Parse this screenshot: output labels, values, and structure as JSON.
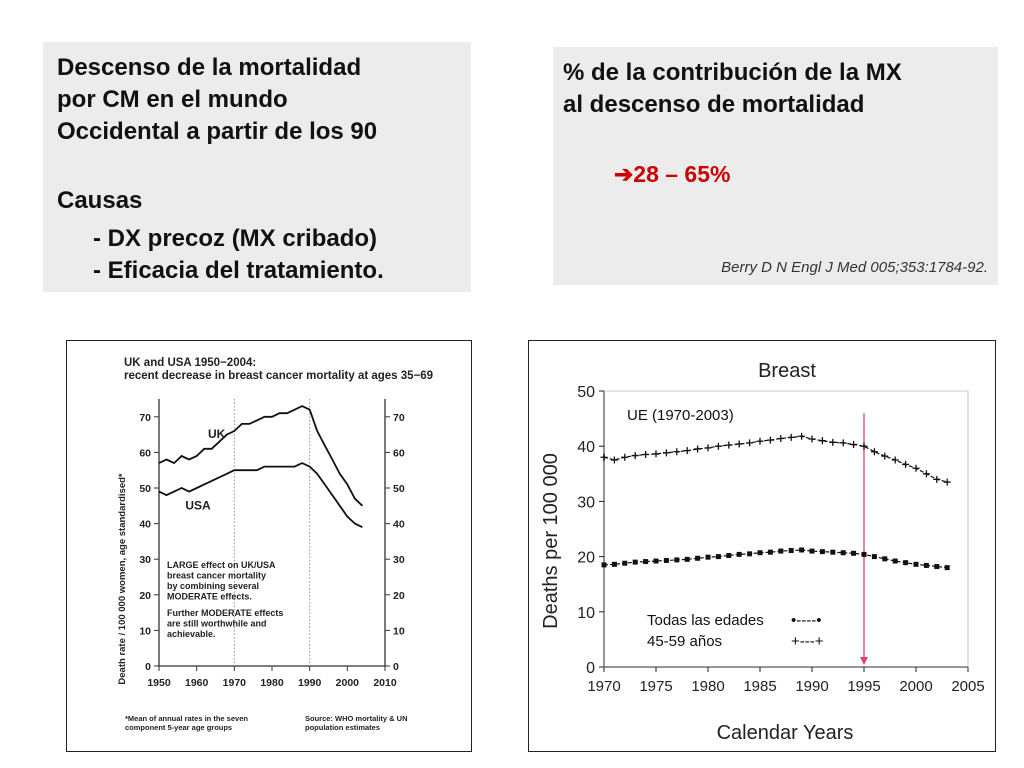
{
  "left_box": {
    "lines": [
      "Descenso de la mortalidad",
      "por CM en el mundo",
      "Occidental  a partir de los 90"
    ],
    "causes_title": "Causas",
    "causes": [
      "- DX precoz (MX cribado)",
      "- Eficacia del tratamiento."
    ]
  },
  "right_box": {
    "lines": [
      "% de la contribución de la MX",
      "al descenso de mortalidad"
    ],
    "arrow_glyph": "➔",
    "range": "28 – 65%",
    "citation": "Berry D N Engl J Med 005;353:1784-92."
  },
  "colors": {
    "box_background": "#ececec",
    "highlight": "#cc0000",
    "marker_line": "#e0407a"
  },
  "chart_data": [
    {
      "type": "line",
      "title": "UK and USA 1950−2004: recent decrease in breast cancer mortality at ages 35−69",
      "ylabel": "Death rate / 100 000 women, age standardised*",
      "xlim": [
        1950,
        2010
      ],
      "ylim": [
        0,
        75
      ],
      "x_ticks": [
        1950,
        1960,
        1970,
        1980,
        1990,
        2000,
        2010
      ],
      "y_ticks": [
        0,
        10,
        20,
        30,
        40,
        50,
        60,
        70
      ],
      "reference_lines_x": [
        1970,
        1990
      ],
      "annotations": [
        "LARGE effect on UK/USA breast cancer mortality by combining several MODERATE effects.",
        "Further MODERATE effects are still worthwhile and achievable."
      ],
      "footnote_left": "*Mean of annual rates in the seven component 5-year age groups",
      "footnote_right": "Source: WHO mortality & UN population estimates",
      "series": [
        {
          "name": "UK",
          "x": [
            1950,
            1952,
            1954,
            1956,
            1958,
            1960,
            1962,
            1964,
            1966,
            1968,
            1970,
            1972,
            1974,
            1976,
            1978,
            1980,
            1982,
            1984,
            1986,
            1988,
            1990,
            1992,
            1994,
            1996,
            1998,
            2000,
            2002,
            2004
          ],
          "y": [
            57,
            58,
            57,
            59,
            58,
            59,
            61,
            61,
            63,
            65,
            66,
            68,
            68,
            69,
            70,
            70,
            71,
            71,
            72,
            73,
            72,
            66,
            62,
            58,
            54,
            51,
            47,
            45
          ]
        },
        {
          "name": "USA",
          "x": [
            1950,
            1952,
            1954,
            1956,
            1958,
            1960,
            1962,
            1964,
            1966,
            1968,
            1970,
            1972,
            1974,
            1976,
            1978,
            1980,
            1982,
            1984,
            1986,
            1988,
            1990,
            1992,
            1994,
            1996,
            1998,
            2000,
            2002,
            2004
          ],
          "y": [
            49,
            48,
            49,
            50,
            49,
            50,
            51,
            52,
            53,
            54,
            55,
            55,
            55,
            55,
            56,
            56,
            56,
            56,
            56,
            57,
            56,
            54,
            51,
            48,
            45,
            42,
            40,
            39
          ]
        }
      ]
    },
    {
      "type": "line",
      "title": "Breast",
      "xlabel": "Calendar Years",
      "ylabel": "Deaths  per 100 000",
      "xlim": [
        1970,
        2005
      ],
      "ylim": [
        0,
        50
      ],
      "x_ticks": [
        1970,
        1975,
        1980,
        1985,
        1990,
        1995,
        2000,
        2005
      ],
      "y_ticks": [
        0,
        10,
        20,
        30,
        40,
        50
      ],
      "reference_line_x": 1995,
      "inset_label": "UE (1970-2003)",
      "legend": [
        {
          "label": "Todas las edades",
          "marker": "•----•"
        },
        {
          "label": "45-59 años",
          "marker": "+---+"
        }
      ],
      "series": [
        {
          "name": "45-59 años",
          "marker": "+",
          "x": [
            1970,
            1971,
            1972,
            1973,
            1974,
            1975,
            1976,
            1977,
            1978,
            1979,
            1980,
            1981,
            1982,
            1983,
            1984,
            1985,
            1986,
            1987,
            1988,
            1989,
            1990,
            1991,
            1992,
            1993,
            1994,
            1995,
            1996,
            1997,
            1998,
            1999,
            2000,
            2001,
            2002,
            2003
          ],
          "y": [
            38,
            37.5,
            38,
            38.3,
            38.5,
            38.6,
            38.8,
            39,
            39.2,
            39.5,
            39.7,
            40,
            40.2,
            40.4,
            40.6,
            40.9,
            41.1,
            41.4,
            41.6,
            41.8,
            41.3,
            41,
            40.7,
            40.6,
            40.3,
            40,
            39,
            38.2,
            37.5,
            36.7,
            36,
            35,
            34,
            33.5
          ]
        },
        {
          "name": "Todas las edades",
          "marker": "square",
          "x": [
            1970,
            1971,
            1972,
            1973,
            1974,
            1975,
            1976,
            1977,
            1978,
            1979,
            1980,
            1981,
            1982,
            1983,
            1984,
            1985,
            1986,
            1987,
            1988,
            1989,
            1990,
            1991,
            1992,
            1993,
            1994,
            1995,
            1996,
            1997,
            1998,
            1999,
            2000,
            2001,
            2002,
            2003
          ],
          "y": [
            18.5,
            18.6,
            18.8,
            19,
            19.1,
            19.2,
            19.3,
            19.4,
            19.5,
            19.7,
            19.9,
            20,
            20.2,
            20.4,
            20.5,
            20.7,
            20.8,
            21,
            21.1,
            21.2,
            21,
            20.9,
            20.8,
            20.7,
            20.6,
            20.4,
            20,
            19.6,
            19.2,
            18.9,
            18.6,
            18.4,
            18.2,
            18
          ]
        }
      ]
    }
  ]
}
